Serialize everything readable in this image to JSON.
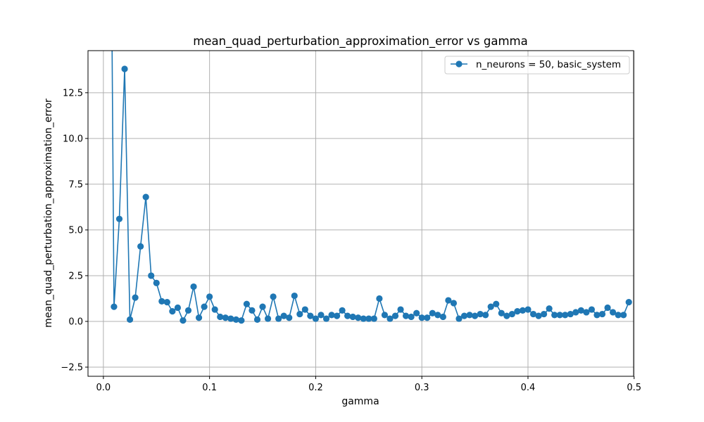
{
  "chart_data": {
    "type": "line",
    "title": "mean_quad_perturbation_approximation_error vs gamma",
    "xlabel": "gamma",
    "ylabel": "mean_quad_perturbation_approximation_error",
    "xlim": [
      -0.0145,
      0.4995
    ],
    "ylim": [
      -3.0,
      14.8
    ],
    "xticks": [
      0.0,
      0.1,
      0.2,
      0.3,
      0.4,
      0.5
    ],
    "xtick_labels": [
      "0.0",
      "0.1",
      "0.2",
      "0.3",
      "0.4",
      "0.5"
    ],
    "yticks": [
      -2.5,
      0.0,
      2.5,
      5.0,
      7.5,
      10.0,
      12.5
    ],
    "ytick_labels": [
      "−2.5",
      "0.0",
      "2.5",
      "5.0",
      "7.5",
      "10.0",
      "12.5"
    ],
    "grid": true,
    "legend_position": "top-right",
    "color": "#1f77b4",
    "marker": "circle",
    "leading_offscale_point": {
      "x": 0.005,
      "y": 40.0
    },
    "series": [
      {
        "name": "n_neurons = 50, basic_system",
        "x": [
          0.01,
          0.015,
          0.02,
          0.025,
          0.03,
          0.035,
          0.04,
          0.045,
          0.05,
          0.055,
          0.06,
          0.065,
          0.07,
          0.075,
          0.08,
          0.085,
          0.09,
          0.095,
          0.1,
          0.105,
          0.11,
          0.115,
          0.12,
          0.125,
          0.13,
          0.135,
          0.14,
          0.145,
          0.15,
          0.155,
          0.16,
          0.165,
          0.17,
          0.175,
          0.18,
          0.185,
          0.19,
          0.195,
          0.2,
          0.205,
          0.21,
          0.215,
          0.22,
          0.225,
          0.23,
          0.235,
          0.24,
          0.245,
          0.25,
          0.255,
          0.26,
          0.265,
          0.27,
          0.275,
          0.28,
          0.285,
          0.29,
          0.295,
          0.3,
          0.305,
          0.31,
          0.315,
          0.32,
          0.325,
          0.33,
          0.335,
          0.34,
          0.345,
          0.35,
          0.355,
          0.36,
          0.365,
          0.37,
          0.375,
          0.38,
          0.385,
          0.39,
          0.395,
          0.4,
          0.405,
          0.41,
          0.415,
          0.42,
          0.425,
          0.43,
          0.435,
          0.44,
          0.445,
          0.45,
          0.455,
          0.46,
          0.465,
          0.47,
          0.475,
          0.48,
          0.485,
          0.49,
          0.495
        ],
        "y": [
          0.8,
          5.6,
          13.8,
          0.1,
          1.3,
          4.1,
          6.8,
          2.5,
          2.1,
          1.1,
          1.05,
          0.55,
          0.75,
          0.05,
          0.6,
          1.9,
          0.2,
          0.8,
          1.35,
          0.65,
          0.25,
          0.2,
          0.15,
          0.1,
          0.05,
          0.95,
          0.6,
          0.1,
          0.8,
          0.15,
          1.35,
          0.15,
          0.3,
          0.2,
          1.4,
          0.4,
          0.65,
          0.3,
          0.15,
          0.35,
          0.15,
          0.35,
          0.3,
          0.6,
          0.3,
          0.25,
          0.2,
          0.15,
          0.15,
          0.15,
          1.25,
          0.35,
          0.15,
          0.3,
          0.65,
          0.3,
          0.25,
          0.45,
          0.2,
          0.2,
          0.45,
          0.35,
          0.25,
          1.15,
          1.0,
          0.15,
          0.3,
          0.35,
          0.3,
          0.4,
          0.35,
          0.8,
          0.95,
          0.45,
          0.3,
          0.4,
          0.55,
          0.6,
          0.65,
          0.4,
          0.3,
          0.4,
          0.7,
          0.35,
          0.35,
          0.35,
          0.4,
          0.5,
          0.6,
          0.5,
          0.65,
          0.35,
          0.4,
          0.75,
          0.5,
          0.35,
          0.35,
          1.05
        ]
      }
    ]
  }
}
